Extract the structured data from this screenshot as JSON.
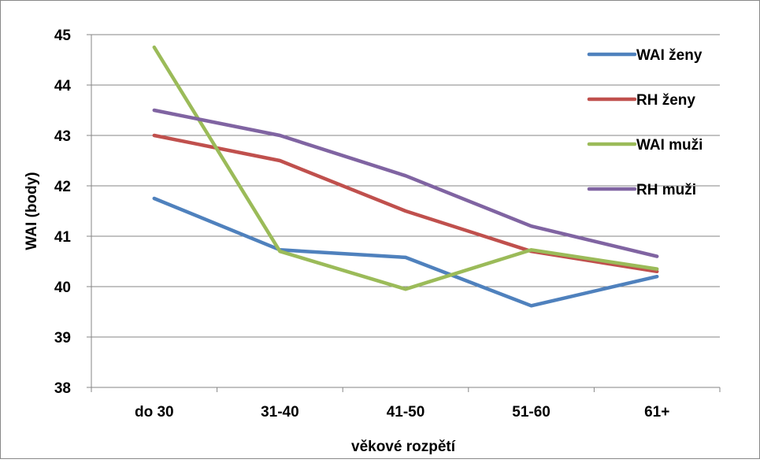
{
  "chart_data": {
    "type": "line",
    "title": "",
    "xlabel": "věkové rozpětí",
    "ylabel": "WAI (body)",
    "categories": [
      "do 30",
      "31-40",
      "41-50",
      "51-60",
      "61+"
    ],
    "ylim": [
      38,
      45
    ],
    "yticks": [
      38,
      39,
      40,
      41,
      42,
      43,
      44,
      45
    ],
    "grid": true,
    "legend_position": "right",
    "series": [
      {
        "name": "WAI ženy",
        "color": "#4F81BD",
        "values": [
          41.75,
          40.73,
          40.58,
          39.62,
          40.2
        ]
      },
      {
        "name": "RH ženy",
        "color": "#C0504D",
        "values": [
          43.0,
          42.5,
          41.5,
          40.7,
          40.3
        ]
      },
      {
        "name": "WAI muži",
        "color": "#9BBB59",
        "values": [
          44.75,
          40.7,
          39.95,
          40.73,
          40.35
        ]
      },
      {
        "name": "RH muži",
        "color": "#8064A2",
        "values": [
          43.5,
          43.0,
          42.2,
          41.2,
          40.6
        ]
      }
    ]
  }
}
